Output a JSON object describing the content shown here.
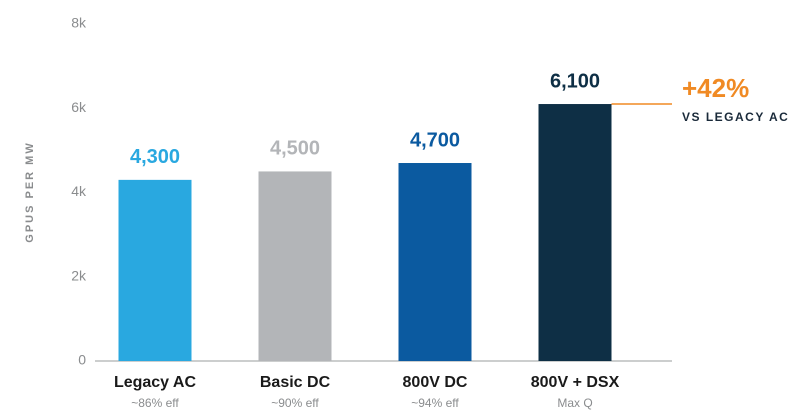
{
  "chart_data": {
    "type": "bar",
    "y_label": "GPUS PER MW",
    "categories": [
      "Legacy AC",
      "Basic DC",
      "800V DC",
      "800V + DSX"
    ],
    "sublabels": [
      "~86% eff",
      "~90% eff",
      "~94% eff",
      "Max Q"
    ],
    "values": [
      4300,
      4500,
      4700,
      6100
    ],
    "value_labels": [
      "4,300",
      "4,500",
      "4,700",
      "6,100"
    ],
    "colors": [
      "#29a8e0",
      "#b3b5b8",
      "#0b5aa0",
      "#0e2f45"
    ],
    "ylim": [
      0,
      8000
    ],
    "yticks": [
      {
        "value": 0,
        "label": "0"
      },
      {
        "value": 2000,
        "label": "2k"
      },
      {
        "value": 4000,
        "label": "4k"
      },
      {
        "value": 6000,
        "label": "6k"
      },
      {
        "value": 8000,
        "label": "8k"
      }
    ],
    "annotation": {
      "text": "+42%",
      "subtext": "VS LEGACY AC",
      "color": "#f08a24"
    }
  }
}
